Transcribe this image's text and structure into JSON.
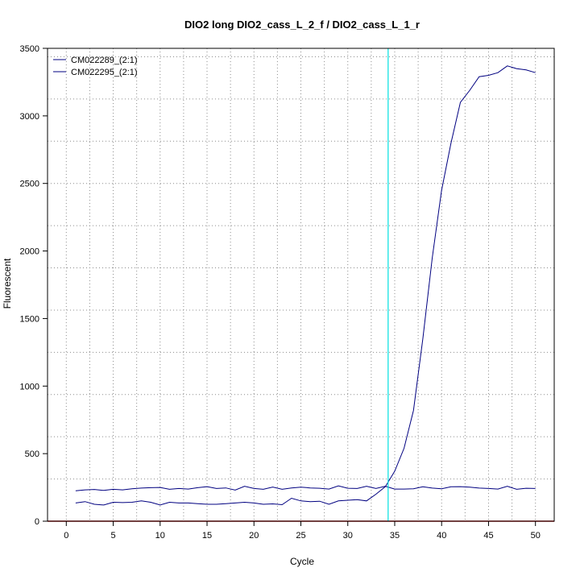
{
  "chart_data": {
    "type": "line",
    "title": "DIO2 long DIO2_cass_L_2_f / DIO2_cass_L_1_r",
    "xlabel": "Cycle",
    "ylabel": "Fluorescent",
    "xlim": [
      -2,
      52
    ],
    "ylim": [
      0,
      3500
    ],
    "x_ticks": [
      0,
      5,
      10,
      15,
      20,
      25,
      30,
      35,
      40,
      45,
      50
    ],
    "x_tick_labels": [
      "0",
      "5",
      "10",
      "15",
      "20",
      "25",
      "30",
      "35",
      "40",
      "45",
      "50"
    ],
    "y_ticks": [
      0,
      500,
      1000,
      1500,
      2000,
      2500,
      3000,
      3500
    ],
    "y_tick_labels": [
      "0",
      "500",
      "1000",
      "1500",
      "2000",
      "2500",
      "3000",
      "3500"
    ],
    "x_grid": [
      0,
      2.5,
      5,
      7.5,
      10,
      12.5,
      15,
      17.5,
      20,
      22.5,
      25,
      27.5,
      30,
      32.5,
      35,
      37.5,
      40,
      42.5,
      45,
      47.5,
      50
    ],
    "y_grid": [
      0,
      312.5,
      625,
      937.5,
      1250,
      1562.5,
      1875,
      2187.5,
      2500,
      2812.5,
      3125,
      3437.5
    ],
    "grid": true,
    "legend_position": "top-left",
    "threshold_x": 34.3,
    "baseline_y": 0,
    "colors": {
      "series": "#000080",
      "threshold": "#00e0e0",
      "baseline": "#cc0000",
      "grid": "#8c8c8c"
    },
    "x": [
      1,
      2,
      3,
      4,
      5,
      6,
      7,
      8,
      9,
      10,
      11,
      12,
      13,
      14,
      15,
      16,
      17,
      18,
      19,
      20,
      21,
      22,
      23,
      24,
      25,
      26,
      27,
      28,
      29,
      30,
      31,
      32,
      33,
      34,
      35,
      36,
      37,
      38,
      39,
      40,
      41,
      42,
      43,
      44,
      45,
      46,
      47,
      48,
      49,
      50
    ],
    "series": [
      {
        "name": "CM022289_(2:1)",
        "values": [
          135,
          145,
          125,
          120,
          140,
          138,
          140,
          150,
          140,
          120,
          140,
          135,
          135,
          130,
          125,
          125,
          130,
          135,
          140,
          135,
          125,
          128,
          122,
          170,
          150,
          145,
          148,
          125,
          150,
          155,
          160,
          150,
          200,
          255,
          370,
          540,
          820,
          1350,
          1950,
          2450,
          2800,
          3100,
          3190,
          3290,
          3300,
          3320,
          3370,
          3350,
          3340,
          3320
        ]
      },
      {
        "name": "CM022295_(2:1)",
        "values": [
          225,
          232,
          235,
          228,
          236,
          232,
          240,
          245,
          248,
          250,
          236,
          242,
          238,
          248,
          256,
          242,
          246,
          230,
          258,
          242,
          236,
          252,
          236,
          246,
          252,
          246,
          244,
          238,
          262,
          244,
          242,
          258,
          242,
          258,
          238,
          238,
          240,
          255,
          245,
          240,
          255,
          256,
          252,
          245,
          242,
          238,
          258,
          236,
          244,
          242
        ]
      }
    ]
  }
}
